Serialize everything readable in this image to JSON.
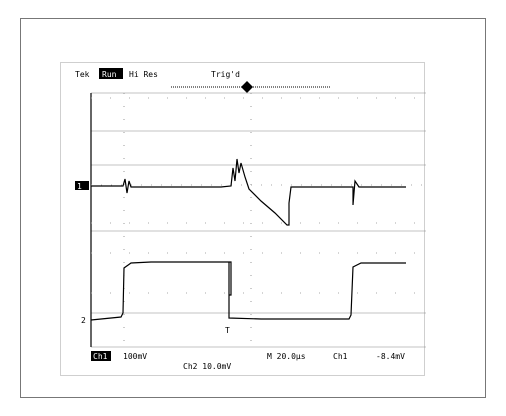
{
  "scope": {
    "status_left": "Tek",
    "status_run": "Run",
    "status_mode": "Hi Res",
    "status_trig": "Trig'd",
    "ch1_marker": "1",
    "ch2_marker": "2",
    "trigger_marker": "T",
    "bottom": {
      "ch1_scale": "Ch1",
      "ch1_value": "100mV",
      "ch2_value": "Ch2  10.0mV",
      "timebase": "M 20.0µs",
      "trigger_source": "Ch1",
      "trigger_level": "-8.4mV"
    }
  },
  "colors": {
    "trace": "#000000",
    "grid": "#888888",
    "frame": "#777777"
  }
}
